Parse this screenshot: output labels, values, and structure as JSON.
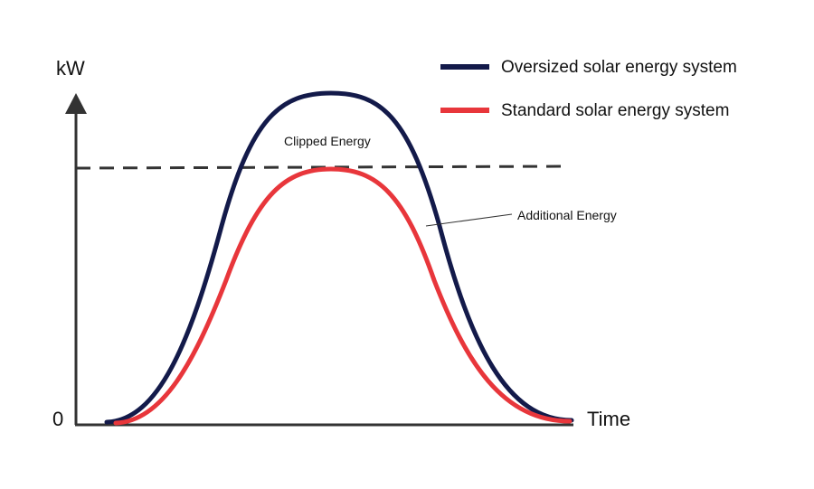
{
  "axes": {
    "y_label": "kW",
    "x_label": "Time",
    "origin_label": "0"
  },
  "legend": [
    {
      "name": "Oversized solar energy system",
      "color": "#131a4a"
    },
    {
      "name": "Standard solar energy system",
      "color": "#e8363b"
    }
  ],
  "annotations": {
    "clipped": "Clipped Energy",
    "additional": "Additional Energy"
  },
  "colors": {
    "axis": "#333333",
    "limit_line": "#333333"
  },
  "chart_data": {
    "type": "line",
    "xlabel": "Time",
    "ylabel": "kW",
    "grid": false,
    "legend_position": "top-right",
    "ylim": [
      0,
      1.3
    ],
    "inverter_limit": 1.0,
    "series": [
      {
        "name": "Oversized solar energy system",
        "peak": 1.3,
        "shape": "bell"
      },
      {
        "name": "Standard solar energy system",
        "peak": 1.0,
        "shape": "bell"
      }
    ]
  }
}
